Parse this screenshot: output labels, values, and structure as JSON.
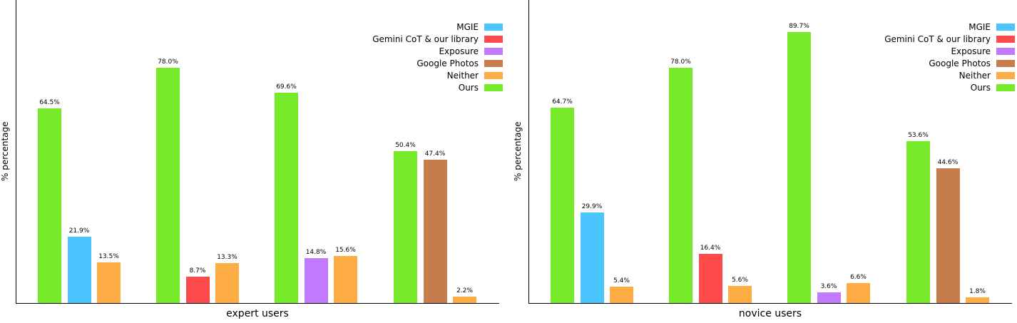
{
  "colors": {
    "MGIE": "#4ac5fd",
    "Gemini CoT & our library": "#fd4a4c",
    "Exposure": "#c17afd",
    "Google Photos": "#c77c4b",
    "Neither": "#fdad44",
    "Ours": "#77eb29"
  },
  "legend": [
    "MGIE",
    "Gemini CoT & our library",
    "Exposure",
    "Google Photos",
    "Neither",
    "Ours"
  ],
  "chart_data": [
    {
      "type": "bar",
      "title": "",
      "xlabel": "expert users",
      "ylabel": "% percentage",
      "grid": false,
      "legend_position": "upper right",
      "ylim": [
        0,
        100
      ],
      "groups": [
        {
          "bars": [
            {
              "series": "Ours",
              "value": 64.5,
              "label": "64.5%"
            },
            {
              "series": "MGIE",
              "value": 21.9,
              "label": "21.9%"
            },
            {
              "series": "Neither",
              "value": 13.5,
              "label": "13.5%"
            }
          ]
        },
        {
          "bars": [
            {
              "series": "Ours",
              "value": 78.0,
              "label": "78.0%"
            },
            {
              "series": "Gemini CoT & our library",
              "value": 8.7,
              "label": "8.7%"
            },
            {
              "series": "Neither",
              "value": 13.3,
              "label": "13.3%"
            }
          ]
        },
        {
          "bars": [
            {
              "series": "Ours",
              "value": 69.6,
              "label": "69.6%"
            },
            {
              "series": "Exposure",
              "value": 14.8,
              "label": "14.8%"
            },
            {
              "series": "Neither",
              "value": 15.6,
              "label": "15.6%"
            }
          ]
        },
        {
          "bars": [
            {
              "series": "Ours",
              "value": 50.4,
              "label": "50.4%"
            },
            {
              "series": "Google Photos",
              "value": 47.4,
              "label": "47.4%"
            },
            {
              "series": "Neither",
              "value": 2.2,
              "label": "2.2%"
            }
          ]
        }
      ]
    },
    {
      "type": "bar",
      "title": "",
      "xlabel": "novice users",
      "ylabel": "% percentage",
      "grid": false,
      "legend_position": "upper right",
      "ylim": [
        0,
        100
      ],
      "groups": [
        {
          "bars": [
            {
              "series": "Ours",
              "value": 64.7,
              "label": "64.7%"
            },
            {
              "series": "MGIE",
              "value": 29.9,
              "label": "29.9%"
            },
            {
              "series": "Neither",
              "value": 5.4,
              "label": "5.4%"
            }
          ]
        },
        {
          "bars": [
            {
              "series": "Ours",
              "value": 78.0,
              "label": "78.0%"
            },
            {
              "series": "Gemini CoT & our library",
              "value": 16.4,
              "label": "16.4%"
            },
            {
              "series": "Neither",
              "value": 5.6,
              "label": "5.6%"
            }
          ]
        },
        {
          "bars": [
            {
              "series": "Ours",
              "value": 89.7,
              "label": "89.7%"
            },
            {
              "series": "Exposure",
              "value": 3.6,
              "label": "3.6%"
            },
            {
              "series": "Neither",
              "value": 6.6,
              "label": "6.6%"
            }
          ]
        },
        {
          "bars": [
            {
              "series": "Ours",
              "value": 53.6,
              "label": "53.6%"
            },
            {
              "series": "Google Photos",
              "value": 44.6,
              "label": "44.6%"
            },
            {
              "series": "Neither",
              "value": 1.8,
              "label": "1.8%"
            }
          ]
        }
      ]
    }
  ]
}
